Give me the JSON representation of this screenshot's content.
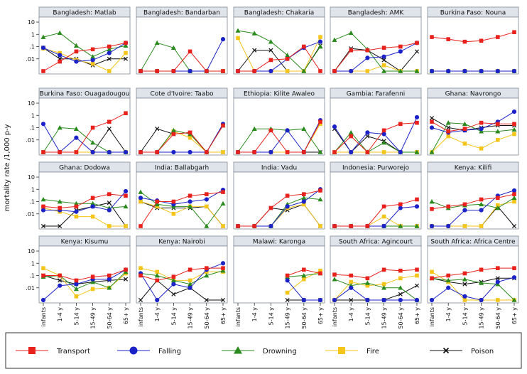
{
  "chart_data": {
    "type": "line",
    "ylabel": "mortality rate /1,000 p-y",
    "y_scale": "log",
    "ylim": [
      0.001,
      15
    ],
    "ytick_labels": [
      "10",
      "1",
      ".1",
      ".01"
    ],
    "ytick_values": [
      10,
      1,
      0.1,
      0.01
    ],
    "zero_value": 0.001,
    "categories": [
      "infants",
      "1-4 y",
      "5-14 y",
      "15-49 y",
      "50-64 y",
      "65+ y"
    ],
    "series_names": [
      "Transport",
      "Falling",
      "Drowning",
      "Fire",
      "Poison"
    ],
    "colors": {
      "Transport": "#e8211c",
      "Falling": "#1b22c8",
      "Drowning": "#2a8a1d",
      "Fire": "#f4c51a",
      "Poison": "#111111",
      "strip": "#dfe4ea",
      "frame": "#7f8a96"
    },
    "legend": [
      {
        "name": "Transport",
        "marker": "square"
      },
      {
        "name": "Falling",
        "marker": "circle"
      },
      {
        "name": "Drowning",
        "marker": "triangle"
      },
      {
        "name": "Fire",
        "marker": "square"
      },
      {
        "name": "Poison",
        "marker": "x"
      }
    ],
    "panels": [
      {
        "title": "Bangladesh: Matlab",
        "series": {
          "Transport": [
            0.001,
            0.006,
            0.04,
            0.06,
            0.1,
            0.2
          ],
          "Falling": [
            0.08,
            0.02,
            0.006,
            0.008,
            0.03,
            0.2
          ],
          "Drowning": [
            0.6,
            1.3,
            0.12,
            0.015,
            0.06,
            0.12
          ],
          "Fire": [
            0.07,
            0.03,
            0.008,
            0.004,
            0.001,
            0.03
          ],
          "Poison": [
            0.08,
            0.01,
            0.01,
            0.003,
            0.01,
            0.01
          ]
        }
      },
      {
        "title": "Bangladesh: Bandarban",
        "series": {
          "Transport": [
            0.001,
            0.001,
            0.001,
            0.04,
            0.001,
            0.001
          ],
          "Falling": [
            0.001,
            0.001,
            0.001,
            0.001,
            0.001,
            0.4
          ],
          "Drowning": [
            0.001,
            0.2,
            0.08,
            0.001,
            0.001,
            0.001
          ],
          "Fire": [
            0.001,
            0.001,
            0.001,
            0.001,
            0.001,
            0.001
          ],
          "Poison": [
            0.001,
            0.001,
            0.001,
            0.001,
            0.001,
            0.001
          ]
        }
      },
      {
        "title": "Bangladesh: Chakaria",
        "series": {
          "Transport": [
            0.001,
            0.001,
            0.008,
            0.01,
            0.1,
            0.001
          ],
          "Falling": [
            0.001,
            0.001,
            0.001,
            0.01,
            0.08,
            0.25
          ],
          "Drowning": [
            2,
            1.2,
            0.25,
            0.02,
            0.001,
            0.1
          ],
          "Fire": [
            0.5,
            0.001,
            0.001,
            0.001,
            0.001,
            0.6
          ],
          "Poison": [
            0.001,
            0.05,
            0.05,
            0.001,
            0.001,
            0.12
          ]
        }
      },
      {
        "title": "Bangladesh: AMK",
        "series": {
          "Transport": [
            0.001,
            0.05,
            0.05,
            0.08,
            0.1,
            0.2
          ],
          "Falling": [
            0.001,
            0.001,
            0.012,
            0.015,
            0.04,
            0.2
          ],
          "Drowning": [
            0.35,
            1.3,
            0.06,
            0.001,
            0.001,
            0.001
          ],
          "Fire": [
            0.001,
            0.001,
            0.001,
            0.003,
            0.001,
            0.001
          ],
          "Poison": [
            0.001,
            0.07,
            0.05,
            0.008,
            0.001,
            0.04
          ]
        }
      },
      {
        "title": "Burkina Faso: Nouna",
        "series": {
          "Transport": [
            0.6,
            0.4,
            0.25,
            0.3,
            0.6,
            1.5
          ],
          "Falling": [
            0.001,
            0.001,
            0.001,
            0.001,
            0.001,
            0.001
          ],
          "Drowning": [
            0.001,
            0.001,
            0.001,
            0.001,
            0.001,
            0.001
          ],
          "Fire": [
            0.001,
            0.001,
            0.001,
            0.001,
            0.001,
            0.001
          ],
          "Poison": [
            0.001,
            0.001,
            0.001,
            0.001,
            0.001,
            0.001
          ]
        }
      },
      {
        "title": "Burkina Faso: Ouagadougou",
        "series": {
          "Transport": [
            0.001,
            0.001,
            0.001,
            0.1,
            0.3,
            1.5
          ],
          "Falling": [
            0.2,
            0.001,
            0.015,
            0.001,
            0.001,
            0.001
          ],
          "Drowning": [
            0.001,
            0.1,
            0.08,
            0.006,
            0.001,
            0.001
          ],
          "Fire": [
            0.001,
            0.001,
            0.001,
            0.001,
            0.001,
            0.001
          ],
          "Poison": [
            0.001,
            0.001,
            0.001,
            0.001,
            0.08,
            0.001
          ]
        }
      },
      {
        "title": "Cote d'Ivoire: Taabo",
        "series": {
          "Transport": [
            0.001,
            0.001,
            0.03,
            0.04,
            0.001,
            0.15
          ],
          "Falling": [
            0.001,
            0.001,
            0.001,
            0.001,
            0.001,
            0.2
          ],
          "Drowning": [
            0.001,
            0.001,
            0.06,
            0.03,
            0.001,
            0.15
          ],
          "Fire": [
            0.001,
            0.001,
            0.05,
            0.015,
            0.001,
            0.001
          ],
          "Poison": [
            0.001,
            0.08,
            0.03,
            0.04,
            0.001,
            0.001
          ]
        }
      },
      {
        "title": "Ethiopia: Kilite Awaleo",
        "series": {
          "Transport": [
            0.001,
            0.001,
            0.06,
            0.001,
            0.001,
            0.3
          ],
          "Falling": [
            0.001,
            0.001,
            0.001,
            0.06,
            0.001,
            0.4
          ],
          "Drowning": [
            0.001,
            0.08,
            0.08,
            0.06,
            0.08,
            0.001
          ],
          "Fire": [
            0.001,
            0.001,
            0.001,
            0.001,
            0.001,
            0.2
          ],
          "Poison": [
            0.001,
            0.001,
            0.001,
            0.001,
            0.001,
            0.001
          ]
        }
      },
      {
        "title": "Gambia: Farafenni",
        "series": {
          "Transport": [
            0.001,
            0.02,
            0.001,
            0.06,
            0.2,
            0.25
          ],
          "Falling": [
            0.12,
            0.001,
            0.04,
            0.03,
            0.001,
            0.7
          ],
          "Drowning": [
            0.001,
            0.04,
            0.001,
            0.006,
            0.001,
            0.001
          ],
          "Fire": [
            0.001,
            0.001,
            0.001,
            0.001,
            0.001,
            0.001
          ],
          "Poison": [
            0.08,
            0.001,
            0.02,
            0.008,
            0.001,
            0.001
          ]
        }
      },
      {
        "title": "Ghana: Navrongo",
        "series": {
          "Transport": [
            0.3,
            0.05,
            0.08,
            0.25,
            0.2,
            0.2
          ],
          "Falling": [
            0.1,
            0.04,
            0.06,
            0.08,
            0.3,
            2
          ],
          "Drowning": [
            0.001,
            0.25,
            0.2,
            0.05,
            0.05,
            0.07
          ],
          "Fire": [
            0.001,
            0.02,
            0.005,
            0.002,
            0.01,
            0.03
          ],
          "Poison": [
            0.6,
            0.1,
            0.06,
            0.1,
            0.15,
            0.15
          ]
        }
      },
      {
        "title": "Ghana: Dodowa",
        "series": {
          "Transport": [
            0.04,
            0.03,
            0.04,
            0.2,
            0.4,
            0.3
          ],
          "Falling": [
            0.02,
            0.02,
            0.015,
            0.04,
            0.02,
            0.7
          ],
          "Drowning": [
            0.15,
            0.1,
            0.07,
            0.07,
            0.03,
            0.04
          ],
          "Fire": [
            0.03,
            0.015,
            0.006,
            0.006,
            0.001,
            0.001
          ],
          "Poison": [
            0.001,
            0.001,
            0.02,
            0.04,
            0.08,
            0.001
          ]
        }
      },
      {
        "title": "India: Ballabgarh",
        "series": {
          "Transport": [
            0.001,
            0.1,
            0.1,
            0.3,
            0.4,
            0.6
          ],
          "Falling": [
            0.2,
            0.12,
            0.06,
            0.1,
            0.15,
            0.9
          ],
          "Drowning": [
            0.6,
            0.06,
            0.04,
            0.04,
            0.001,
            0.07
          ],
          "Fire": [
            0.1,
            0.04,
            0.01,
            0.04,
            0.04,
            0.001
          ],
          "Poison": [
            0.1,
            0.03,
            0.03,
            0.03,
            0.04,
            0.001
          ]
        }
      },
      {
        "title": "India: Vadu",
        "series": {
          "Transport": [
            0.001,
            0.001,
            0.03,
            0.3,
            0.4,
            0.8
          ],
          "Falling": [
            0.001,
            0.001,
            0.001,
            0.04,
            0.1,
            1
          ],
          "Drowning": [
            0.001,
            0.001,
            0.001,
            0.06,
            0.2,
            0.15
          ],
          "Fire": [
            0.001,
            0.001,
            0.001,
            0.03,
            0.06,
            0.001
          ],
          "Poison": [
            0.001,
            0.001,
            0.03,
            0.02,
            0.06,
            0.001
          ]
        }
      },
      {
        "title": "Indonesia: Purworejo",
        "series": {
          "Transport": [
            0.001,
            0.001,
            0.001,
            0.04,
            0.06,
            0.15
          ],
          "Falling": [
            0.001,
            0.001,
            0.001,
            0.001,
            0.03,
            0.04
          ],
          "Drowning": [
            0.001,
            0.001,
            0.001,
            0.001,
            0.001,
            0.001
          ],
          "Fire": [
            0.001,
            0.001,
            0.001,
            0.006,
            0.001,
            0.001
          ],
          "Poison": [
            0.001,
            0.001,
            0.001,
            0.001,
            0.001,
            0.001
          ]
        }
      },
      {
        "title": "Kenya: Kilifi",
        "series": {
          "Transport": [
            0.025,
            0.04,
            0.06,
            0.15,
            0.2,
            0.4
          ],
          "Falling": [
            0.001,
            0.001,
            0.02,
            0.02,
            0.3,
            0.8
          ],
          "Drowning": [
            0.1,
            0.03,
            0.05,
            0.06,
            0.03,
            0.2
          ],
          "Fire": [
            0.001,
            0.001,
            0.001,
            0.001,
            0.05,
            0.1
          ],
          "Poison": [
            0.001,
            0.001,
            0.001,
            0.001,
            0.04,
            0.001
          ]
        }
      },
      {
        "title": "Kenya: Kisumu",
        "series": {
          "Transport": [
            0.1,
            0.1,
            0.04,
            0.08,
            0.1,
            0.3
          ],
          "Falling": [
            0.001,
            0.015,
            0.02,
            0.05,
            0.05,
            0.3
          ],
          "Drowning": [
            0.08,
            0.1,
            0.008,
            0.03,
            0.01,
            0.2
          ],
          "Fire": [
            0.4,
            0.1,
            0.002,
            0.008,
            0.01,
            0.15
          ],
          "Poison": [
            0.1,
            0.04,
            0.02,
            0.03,
            0.04,
            0.05
          ]
        }
      },
      {
        "title": "Kenya: Nairobi",
        "series": {
          "Transport": [
            0.1,
            0.04,
            0.08,
            0.3,
            0.4,
            0.4
          ],
          "Falling": [
            0.15,
            0.001,
            0.02,
            0.01,
            0.3,
            1
          ],
          "Drowning": [
            0.15,
            0.1,
            0.04,
            0.02,
            0.1,
            0.25
          ],
          "Fire": [
            0.4,
            0.2,
            0.04,
            0.04,
            0.2,
            0.2
          ],
          "Poison": [
            0.001,
            0.04,
            0.003,
            0.01,
            0.001,
            0.001
          ]
        }
      },
      {
        "title": "Malawi: Karonga",
        "series": {
          "Transport": [
            null,
            null,
            null,
            0.1,
            0.3,
            0.15
          ],
          "Falling": [
            null,
            null,
            null,
            0.04,
            0.001,
            0.001
          ],
          "Drowning": [
            null,
            null,
            null,
            0.08,
            0.1,
            0.15
          ],
          "Fire": [
            null,
            null,
            null,
            0.004,
            0.05,
            0.25
          ],
          "Poison": [
            null,
            null,
            null,
            0.001,
            0.001,
            0.001
          ]
        }
      },
      {
        "title": "South Africa: Agincourt",
        "series": {
          "Transport": [
            0.12,
            0.1,
            0.06,
            0.3,
            0.25,
            0.3
          ],
          "Falling": [
            0.001,
            0.01,
            0.001,
            0.001,
            0.001,
            0.001
          ],
          "Drowning": [
            0.05,
            0.015,
            0.025,
            0.01,
            0.01,
            0.001
          ],
          "Fire": [
            0.001,
            0.03,
            0.015,
            0.02,
            0.06,
            0.1
          ],
          "Poison": [
            0.001,
            0.001,
            0.001,
            0.001,
            0.003,
            0.015
          ]
        }
      },
      {
        "title": "South Africa: Africa Centre",
        "series": {
          "Transport": [
            0.06,
            0.1,
            0.15,
            0.3,
            0.4,
            0.4
          ],
          "Falling": [
            0.001,
            0.01,
            0.002,
            0.001,
            0.03,
            0.07
          ],
          "Drowning": [
            0.06,
            0.04,
            0.05,
            0.025,
            0.02,
            0.001
          ],
          "Fire": [
            0.2,
            0.03,
            0.001,
            0.001,
            0.001,
            0.001
          ],
          "Poison": [
            0.06,
            0.03,
            0.02,
            0.03,
            0.06,
            0.06
          ]
        }
      }
    ]
  }
}
